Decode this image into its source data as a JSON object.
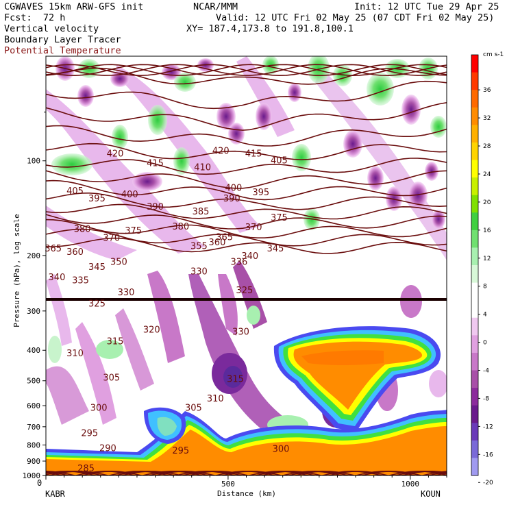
{
  "header": {
    "model": "CGWAVES 15km ARW-GFS init",
    "org": "NCAR/MMM",
    "init": "Init: 12 UTC Tue 29 Apr 25",
    "fcst": "Fcst:  72 h",
    "valid": "Valid: 12 UTC Fri 02 May 25 (07 CDT Fri 02 May 25)",
    "field1": "Vertical velocity",
    "xy": "XY= 187.4,173.8 to 191.8,100.1",
    "field2": "Boundary Layer Tracer",
    "field3": "Potential Temperature"
  },
  "colors": {
    "theta_contour": "#6a0d0d",
    "pbl_tracer_orange": "#ff8c00",
    "neg_dark": "#7a1e8c",
    "neg_light": "#e8b0e8",
    "pos_light": "#a8f0b0",
    "pos_dark": "#2ecc40"
  },
  "chart_data": {
    "type": "heatmap",
    "subtype": "vertical cross-section",
    "xlabel": "Distance (km)",
    "ylabel": "Pressure (hPa), log scale",
    "x_ticks": [
      0,
      500,
      1000
    ],
    "xlim": [
      0,
      1100
    ],
    "y_ticks": [
      100,
      200,
      300,
      400,
      500,
      600,
      700,
      800,
      900,
      1000
    ],
    "y_scale": "log",
    "ylim": [
      1000,
      100
    ],
    "endpoints": {
      "left": "KABR",
      "right": "KOUN"
    },
    "colorbar": {
      "units": "cm s-1",
      "ticks": [
        36,
        32,
        28,
        24,
        20,
        16,
        12,
        8,
        4,
        0,
        -4,
        -8,
        -12,
        -16,
        -20
      ],
      "colors": [
        "#ff0000",
        "#ff3a00",
        "#ff6a00",
        "#ff8c00",
        "#ffb000",
        "#ffd400",
        "#ffff00",
        "#c8f000",
        "#80e000",
        "#40d040",
        "#70e070",
        "#a8f0b0",
        "#d8f8d8",
        "#ffffff",
        "#ffffff",
        "#f0c8f0",
        "#e0a0e0",
        "#c878c8",
        "#a850a8",
        "#8c2c9c",
        "#6a1a8c",
        "#6a3ab8",
        "#7a6ad8",
        "#a09af0"
      ]
    },
    "theta_labels": [
      {
        "v": 420,
        "x": 190,
        "p": 95
      },
      {
        "v": 415,
        "x": 300,
        "p": 102
      },
      {
        "v": 410,
        "x": 430,
        "p": 105
      },
      {
        "v": 420,
        "x": 480,
        "p": 93
      },
      {
        "v": 415,
        "x": 570,
        "p": 95
      },
      {
        "v": 405,
        "x": 640,
        "p": 100
      },
      {
        "v": 405,
        "x": 80,
        "p": 125
      },
      {
        "v": 395,
        "x": 140,
        "p": 132
      },
      {
        "v": 400,
        "x": 230,
        "p": 128
      },
      {
        "v": 390,
        "x": 300,
        "p": 140
      },
      {
        "v": 385,
        "x": 425,
        "p": 145
      },
      {
        "v": 390,
        "x": 510,
        "p": 132
      },
      {
        "v": 400,
        "x": 515,
        "p": 122
      },
      {
        "v": 395,
        "x": 590,
        "p": 126
      },
      {
        "v": 375,
        "x": 640,
        "p": 152
      },
      {
        "v": 380,
        "x": 100,
        "p": 165
      },
      {
        "v": 375,
        "x": 240,
        "p": 167
      },
      {
        "v": 370,
        "x": 180,
        "p": 176
      },
      {
        "v": 380,
        "x": 370,
        "p": 162
      },
      {
        "v": 365,
        "x": 490,
        "p": 175
      },
      {
        "v": 370,
        "x": 570,
        "p": 163
      },
      {
        "v": 365,
        "x": 20,
        "p": 190
      },
      {
        "v": 360,
        "x": 80,
        "p": 195
      },
      {
        "v": 355,
        "x": 420,
        "p": 187
      },
      {
        "v": 360,
        "x": 470,
        "p": 182
      },
      {
        "v": 340,
        "x": 560,
        "p": 201
      },
      {
        "v": 345,
        "x": 630,
        "p": 190
      },
      {
        "v": 350,
        "x": 200,
        "p": 210
      },
      {
        "v": 345,
        "x": 140,
        "p": 218
      },
      {
        "v": 335,
        "x": 95,
        "p": 240
      },
      {
        "v": 340,
        "x": 30,
        "p": 235
      },
      {
        "v": 336,
        "x": 530,
        "p": 210
      },
      {
        "v": 330,
        "x": 420,
        "p": 225
      },
      {
        "v": 330,
        "x": 220,
        "p": 262
      },
      {
        "v": 325,
        "x": 140,
        "p": 285
      },
      {
        "v": 325,
        "x": 545,
        "p": 258
      },
      {
        "v": 320,
        "x": 290,
        "p": 345
      },
      {
        "v": 315,
        "x": 190,
        "p": 375
      },
      {
        "v": 310,
        "x": 80,
        "p": 410
      },
      {
        "v": 330,
        "x": 535,
        "p": 350
      },
      {
        "v": 305,
        "x": 180,
        "p": 490
      },
      {
        "v": 315,
        "x": 520,
        "p": 495
      },
      {
        "v": 310,
        "x": 465,
        "p": 570
      },
      {
        "v": 305,
        "x": 405,
        "p": 610
      },
      {
        "v": 300,
        "x": 145,
        "p": 610
      },
      {
        "v": 295,
        "x": 120,
        "p": 735
      },
      {
        "v": 290,
        "x": 170,
        "p": 820
      },
      {
        "v": 295,
        "x": 370,
        "p": 835
      },
      {
        "v": 300,
        "x": 645,
        "p": 825
      },
      {
        "v": 285,
        "x": 110,
        "p": 950
      }
    ]
  },
  "footer": {
    "x0": "0",
    "left_station": "KABR",
    "right_station": "KOUN"
  }
}
